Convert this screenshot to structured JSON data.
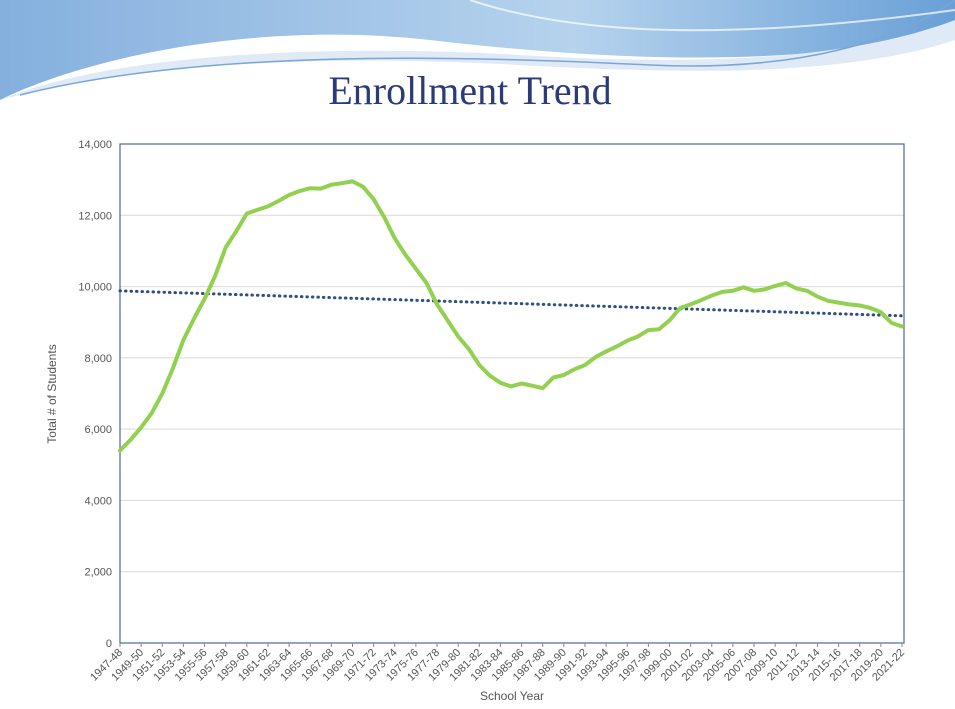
{
  "chart_data": {
    "type": "line",
    "title": "Enrollment Trend",
    "x_label": "School Year",
    "y_label": "Total # of Students",
    "categories": [
      "1947-48",
      null,
      "1949-50",
      null,
      "1951-52",
      null,
      "1953-54",
      null,
      "1955-56",
      null,
      "1957-58",
      null,
      "1959-60",
      null,
      "1961-62",
      null,
      "1963-64",
      null,
      "1965-66",
      null,
      "1967-68",
      null,
      "1969-70",
      null,
      "1971-72",
      null,
      "1973-74",
      null,
      "1975-76",
      null,
      "1977-78",
      null,
      "1979-80",
      null,
      "1981-82",
      null,
      "1983-84",
      null,
      "1985-86",
      null,
      "1987-88",
      null,
      "1989-90",
      null,
      "1991-92",
      null,
      "1993-94",
      null,
      "1995-96",
      null,
      "1997-98",
      null,
      "1999-00",
      null,
      "2001-02",
      null,
      "2003-04",
      null,
      "2005-06",
      null,
      "2007-08",
      null,
      "2009-10",
      null,
      "2011-12",
      null,
      "2013-14",
      null,
      "2015-16",
      null,
      "2017-18",
      null,
      "2019-20",
      null,
      "2021-22"
    ],
    "values": [
      5400,
      5700,
      6050,
      6450,
      7000,
      7700,
      8500,
      9100,
      9650,
      10300,
      11100,
      11550,
      12050,
      12150,
      12250,
      12400,
      12570,
      12680,
      12760,
      12750,
      12860,
      12900,
      12950,
      12800,
      12450,
      11950,
      11350,
      10900,
      10500,
      10100,
      9500,
      9050,
      8600,
      8250,
      7800,
      7500,
      7300,
      7200,
      7280,
      7220,
      7150,
      7450,
      7520,
      7680,
      7800,
      8020,
      8180,
      8320,
      8480,
      8600,
      8780,
      8800,
      9050,
      9400,
      9500,
      9620,
      9750,
      9850,
      9880,
      9980,
      9880,
      9920,
      10020,
      10100,
      9950,
      9880,
      9720,
      9600,
      9550,
      9500,
      9470,
      9400,
      9280,
      8980,
      8880
    ],
    "color": "#92d050",
    "trendline": {
      "values": [
        9880,
        9180
      ],
      "color": "#2f5080",
      "style": "dotted"
    },
    "ylim": [
      0,
      14000
    ],
    "yticks": [
      0,
      {
        "value": 2000,
        "label": "2,000"
      },
      {
        "value": 4000,
        "label": "4,000"
      },
      {
        "value": 6000,
        "label": "6,000"
      },
      {
        "value": 8000,
        "label": "8,000"
      },
      {
        "value": 10000,
        "label": "10,000"
      },
      {
        "value": 12000,
        "label": "12,000"
      },
      {
        "value": 14000,
        "label": "14,000"
      }
    ],
    "grid": true
  }
}
